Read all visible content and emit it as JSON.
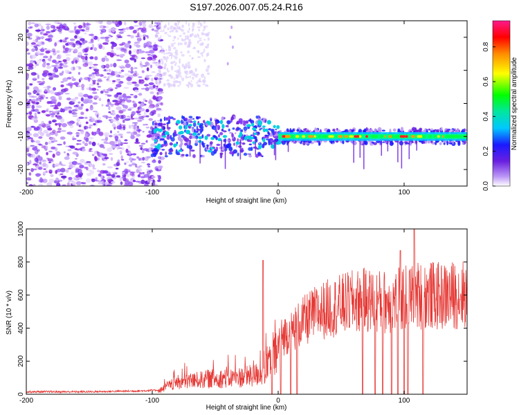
{
  "title": "S197.2026.007.05.24.R16",
  "colors": {
    "signal": "#ff3b2f",
    "snr_line": "#e53935",
    "noise": "#7a3cf0",
    "axis": "#000000"
  },
  "chart_data": [
    {
      "type": "heatmap",
      "xlabel": "Height of straight line (km)",
      "ylabel": "Frequency (Hz)",
      "xlim": [
        -200,
        150
      ],
      "ylim": [
        -25,
        25
      ],
      "x_ticks": [
        "-200",
        "-100",
        "0",
        "100"
      ],
      "y_ticks": [
        "20",
        "10",
        "0",
        "-10",
        "-20"
      ],
      "x_tick_values": [
        -200,
        -100,
        0,
        100
      ],
      "y_tick_values": [
        20,
        10,
        0,
        -10,
        -20
      ],
      "colorbar": {
        "label": "Normalized spectral amplitude",
        "range": [
          0,
          0.95
        ],
        "ticks": [
          "0.0",
          "0.2",
          "0.4",
          "0.6",
          "0.8"
        ],
        "tick_values": [
          0.0,
          0.2,
          0.4,
          0.6,
          0.8
        ]
      },
      "description_data": {
        "noise_region_x": [
          -200,
          -100
        ],
        "signal_band_center_hz": -10,
        "signal_band_start_x": -100,
        "signal_band_end_x": 150
      }
    },
    {
      "type": "line",
      "xlabel": "Height of straight line (km)",
      "ylabel": "SNR (10 * v/v)",
      "xlim": [
        -200,
        150
      ],
      "ylim": [
        0,
        1000
      ],
      "x_ticks": [
        "-200",
        "-100",
        "0",
        "100"
      ],
      "y_ticks": [
        "0",
        "200",
        "400",
        "600",
        "800",
        "1000"
      ],
      "x_tick_values": [
        -200,
        -100,
        0,
        100
      ],
      "y_tick_values": [
        0,
        200,
        400,
        600,
        800,
        1000
      ],
      "envelope": {
        "x": [
          -200,
          -150,
          -110,
          -95,
          -90,
          -80,
          -70,
          -60,
          -50,
          -40,
          -30,
          -20,
          -10,
          -5,
          0,
          5,
          10,
          20,
          30,
          40,
          50,
          60,
          70,
          80,
          90,
          100,
          110,
          120,
          130,
          140,
          150
        ],
        "y": [
          15,
          15,
          20,
          25,
          50,
          90,
          100,
          110,
          120,
          120,
          130,
          140,
          180,
          250,
          320,
          360,
          380,
          440,
          490,
          520,
          540,
          560,
          570,
          560,
          560,
          580,
          600,
          600,
          590,
          600,
          610
        ]
      },
      "spikes": [
        {
          "x": -12,
          "y": 810
        },
        {
          "x": 108,
          "y": 1000
        },
        {
          "x": 97,
          "y": 870
        }
      ],
      "dropouts": [
        -5,
        2,
        10,
        15,
        67,
        77,
        83,
        90,
        95,
        100,
        103,
        108,
        115
      ]
    }
  ]
}
